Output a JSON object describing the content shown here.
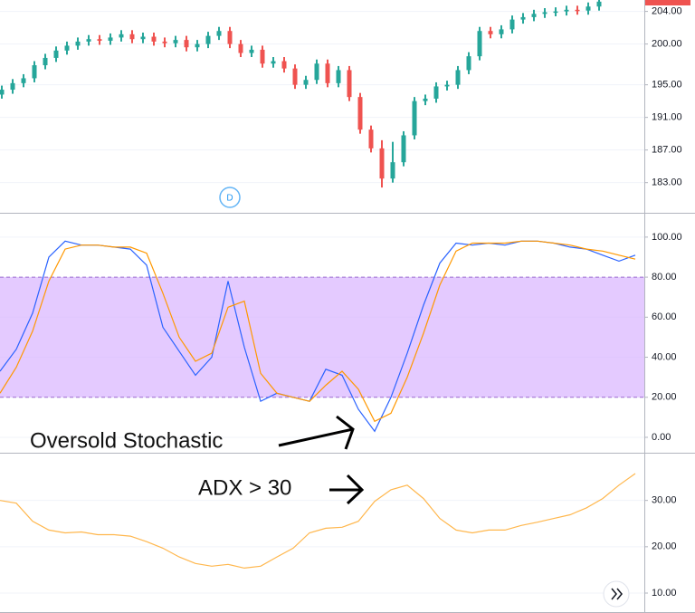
{
  "chart_data": [
    {
      "type": "candlestick",
      "name": "price",
      "open": [
        193.8,
        194.4,
        195.2,
        195.8,
        197.4,
        198.3,
        199.2,
        199.8,
        200.3,
        200.6,
        200.4,
        200.8,
        201.2,
        200.6,
        200.9,
        200.3,
        200.1,
        200.5,
        199.6,
        200.0,
        201.0,
        201.6,
        200.0,
        198.9,
        199.3,
        197.6,
        197.9,
        197.0,
        195.0,
        195.6,
        197.6,
        195.2,
        196.8,
        193.5,
        189.5,
        187.2,
        183.5,
        185.5,
        188.8,
        193.0,
        193.3,
        194.8,
        195.0,
        196.8,
        198.5,
        201.6,
        201.2,
        201.8,
        203.0,
        203.3,
        203.7,
        203.9,
        204.0,
        204.2,
        204.1,
        204.6
      ],
      "high": [
        194.9,
        195.7,
        196.3,
        197.9,
        198.8,
        199.7,
        200.3,
        200.8,
        201.1,
        201.1,
        201.3,
        201.7,
        201.7,
        201.4,
        201.4,
        200.8,
        201.0,
        201.0,
        200.5,
        201.5,
        202.1,
        202.1,
        200.5,
        199.8,
        199.8,
        198.4,
        198.4,
        197.5,
        196.1,
        198.1,
        198.1,
        197.3,
        197.3,
        194.0,
        190.0,
        188.2,
        188.0,
        189.3,
        193.5,
        193.8,
        195.3,
        195.5,
        197.3,
        199.0,
        202.1,
        202.1,
        202.3,
        203.5,
        203.8,
        204.2,
        204.4,
        204.5,
        204.7,
        204.7,
        205.1,
        205.7
      ],
      "low": [
        193.3,
        193.9,
        194.7,
        195.3,
        196.9,
        197.8,
        198.7,
        199.3,
        199.8,
        199.9,
        199.9,
        200.3,
        200.1,
        200.1,
        199.8,
        199.6,
        199.6,
        199.1,
        199.1,
        199.5,
        200.5,
        199.5,
        198.4,
        198.4,
        197.1,
        197.1,
        196.5,
        194.5,
        194.5,
        195.1,
        194.7,
        194.7,
        193.0,
        189.0,
        186.7,
        182.4,
        183.0,
        185.0,
        188.3,
        192.5,
        192.8,
        194.3,
        194.5,
        196.3,
        198.0,
        200.7,
        200.7,
        201.3,
        202.5,
        202.8,
        203.2,
        203.4,
        203.5,
        203.6,
        203.6,
        204.1
      ],
      "close": [
        194.4,
        195.2,
        195.8,
        197.4,
        198.3,
        199.2,
        199.8,
        200.3,
        200.6,
        200.4,
        200.8,
        201.2,
        200.6,
        200.9,
        200.3,
        200.1,
        200.5,
        199.6,
        200.0,
        201.0,
        201.6,
        200.0,
        198.9,
        199.3,
        197.6,
        197.9,
        197.0,
        195.0,
        195.6,
        197.6,
        195.2,
        196.8,
        193.5,
        189.5,
        187.2,
        183.5,
        185.5,
        188.8,
        193.0,
        193.3,
        194.8,
        195.0,
        196.8,
        198.5,
        201.6,
        201.2,
        201.8,
        203.0,
        203.3,
        203.7,
        203.9,
        204.0,
        204.2,
        204.1,
        204.6,
        205.2
      ],
      "up_color": "#26a69a",
      "down_color": "#ef5350",
      "ylim": [
        179.3,
        205.4
      ],
      "yticks": [
        {
          "value": 204,
          "label": "204.00"
        },
        {
          "value": 200,
          "label": "200.00"
        },
        {
          "value": 195,
          "label": "195.00"
        },
        {
          "value": 191,
          "label": "191.00"
        },
        {
          "value": 187,
          "label": "187.00"
        },
        {
          "value": 183,
          "label": "183.00"
        }
      ],
      "marker": "D"
    },
    {
      "type": "line",
      "name": "stochastic",
      "series": [
        {
          "color": "#2962ff",
          "values": [
            33,
            44,
            62,
            90,
            98,
            96,
            96,
            95,
            94,
            86,
            55,
            43,
            31,
            40,
            78,
            45,
            18,
            22,
            20,
            18,
            34,
            31,
            14,
            3,
            20,
            42,
            66,
            87,
            97,
            96,
            97,
            96,
            98,
            98,
            97,
            95,
            94,
            91,
            88,
            91
          ]
        },
        {
          "color": "#ff9800",
          "values": [
            22,
            35,
            53,
            78,
            94,
            96,
            96,
            95,
            95,
            92,
            72,
            50,
            38,
            42,
            65,
            68,
            32,
            22,
            20,
            18,
            26,
            33,
            24,
            8,
            12,
            30,
            52,
            76,
            93,
            97,
            97,
            97,
            98,
            98,
            97,
            96,
            94,
            93,
            91,
            89
          ]
        }
      ],
      "band": [
        20,
        80
      ],
      "band_color": "#d9b3ff",
      "ylim": [
        -7.7,
        111.7
      ],
      "yticks": [
        {
          "value": 100,
          "label": "100.00"
        },
        {
          "value": 80,
          "label": "80.00"
        },
        {
          "value": 60,
          "label": "60.00"
        },
        {
          "value": 40,
          "label": "40.00"
        },
        {
          "value": 20,
          "label": "20.00"
        },
        {
          "value": 0,
          "label": "0.00"
        }
      ],
      "annotation": "Oversold Stochastic"
    },
    {
      "type": "line",
      "name": "adx",
      "series": [
        {
          "color": "#ffb74d",
          "values": [
            30,
            29.4,
            25.5,
            23.6,
            23,
            23.2,
            22.6,
            22.6,
            22.3,
            21.1,
            19.7,
            17.8,
            16.4,
            15.8,
            16.2,
            15.4,
            15.8,
            17.8,
            19.7,
            23,
            24,
            24.2,
            25.5,
            29.8,
            32.3,
            33.3,
            30.4,
            26.1,
            23.6,
            23,
            23.6,
            23.6,
            24.6,
            25.3,
            26.1,
            26.9,
            28.4,
            30.4,
            33.3,
            35.8
          ]
        }
      ],
      "ylim": [
        5.7,
        40.1
      ],
      "yticks": [
        {
          "value": 30,
          "label": "30.00"
        },
        {
          "value": 20,
          "label": "20.00"
        },
        {
          "value": 10,
          "label": "10.00"
        }
      ],
      "annotation": "ADX > 30"
    }
  ]
}
